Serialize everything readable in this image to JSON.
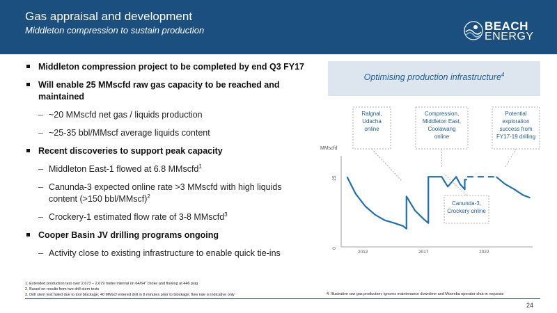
{
  "header": {
    "title": "Gas appraisal and development",
    "subtitle": "Middleton compression to sustain production",
    "logo_line1": "BEACH",
    "logo_line2": "ENERGY"
  },
  "bullets": [
    {
      "level": 1,
      "text": "Middleton compression project to be completed by end Q3 FY17",
      "sup": ""
    },
    {
      "level": 1,
      "text": "Will enable 25 MMscfd raw gas capacity to be reached and maintained",
      "sup": ""
    },
    {
      "level": 2,
      "text": "~20 MMscfd net gas / liquids production",
      "sup": ""
    },
    {
      "level": 2,
      "text": "~25-35 bbl/MMscf average liquids content",
      "sup": ""
    },
    {
      "level": 1,
      "text": "Recent discoveries to support peak capacity",
      "sup": ""
    },
    {
      "level": 2,
      "text": "Middleton East-1 flowed at 6.8 MMscfd",
      "sup": "1"
    },
    {
      "level": 2,
      "text": "Canunda-3 expected online rate >3 MMscfd with high liquids content (>150 bbl/MMscf)",
      "sup": "2"
    },
    {
      "level": 2,
      "text": "Crockery-1 estimated flow rate of 3-8 MMscfd",
      "sup": "3"
    },
    {
      "level": 1,
      "text": "Cooper Basin JV drilling programs ongoing",
      "sup": ""
    },
    {
      "level": 2,
      "text": "Activity close to existing infrastructure to enable quick tie-ins",
      "sup": ""
    }
  ],
  "panel": {
    "text": "Optimising production infrastructure",
    "sup": "4"
  },
  "chart_data": {
    "type": "line",
    "title": "",
    "xlabel": "",
    "ylabel": "MMscfd",
    "x_ticks": [
      "2012",
      "2017",
      "2022"
    ],
    "y_ticks": [
      "0",
      "25"
    ],
    "xlim": [
      2010.5,
      2026.0
    ],
    "ylim": [
      0,
      30
    ],
    "series": [
      {
        "style": "solid",
        "points": [
          [
            2010.7,
            25
          ],
          [
            2011.4,
            19
          ],
          [
            2012.2,
            14.5
          ],
          [
            2013.0,
            11.5
          ],
          [
            2013.8,
            9.5
          ],
          [
            2014.6,
            8.5
          ],
          [
            2015.3,
            7.5
          ],
          [
            2015.6,
            6.5
          ],
          [
            2015.6,
            18
          ],
          [
            2016.3,
            13
          ],
          [
            2017.0,
            10
          ],
          [
            2017.4,
            8.5
          ],
          [
            2017.4,
            25
          ],
          [
            2018.5,
            25
          ],
          [
            2019.0,
            21.5
          ],
          [
            2019.7,
            25
          ],
          [
            2020.0,
            22.5
          ],
          [
            2020.4,
            20.5
          ],
          [
            2020.4,
            24
          ],
          [
            2020.6,
            24
          ]
        ]
      },
      {
        "style": "dashed",
        "points": [
          [
            2020.6,
            25
          ],
          [
            2023.0,
            25
          ]
        ]
      },
      {
        "style": "solid",
        "points": [
          [
            2023.0,
            25
          ],
          [
            2023.7,
            22.5
          ],
          [
            2024.5,
            20.5
          ],
          [
            2025.2,
            18.5
          ],
          [
            2025.8,
            17.5
          ]
        ]
      }
    ],
    "annotations": [
      {
        "text": "Ralgnal, Udacha online",
        "lines": [
          "Ralgnal,",
          "Udacha",
          "online"
        ]
      },
      {
        "text": "Compression, Middleton East, Coolawang online",
        "lines": [
          "Compression,",
          "Middleton East,",
          "Coolawang",
          "online"
        ]
      },
      {
        "text": "Potential exploration success from FY17-19 drilling",
        "lines": [
          "Potential",
          "exploration",
          "success from",
          "FY17-19 drilling"
        ]
      },
      {
        "text": "Canunda-3, Crockery online",
        "lines": [
          "Canunda-3,",
          "Crockery online"
        ]
      }
    ],
    "colors": {
      "line": "#1f6fb2",
      "axis": "#888888",
      "box_border": "#999999",
      "box_text": "#1f5f94"
    }
  },
  "footnotes": [
    "1.   Extended production test over 2,673 – 2,679 metre interval on 64/64\" choke and flowing at 446 psig",
    "2.   Based on results from two drill stem tests",
    "3.   Drill stem test failed due to tool blockage; 40 MMscf entered drill in 8 minutes prior to blockage; flow rate is indicative only"
  ],
  "footnote4": "4. Illustrative raw gas production; ignores maintenance downtime and Moomba operator shut-in requests",
  "page_number": "24",
  "colors": {
    "brand": "#1a4f80",
    "panel_bg": "#dde5ef",
    "accent_text": "#1f5f94"
  }
}
